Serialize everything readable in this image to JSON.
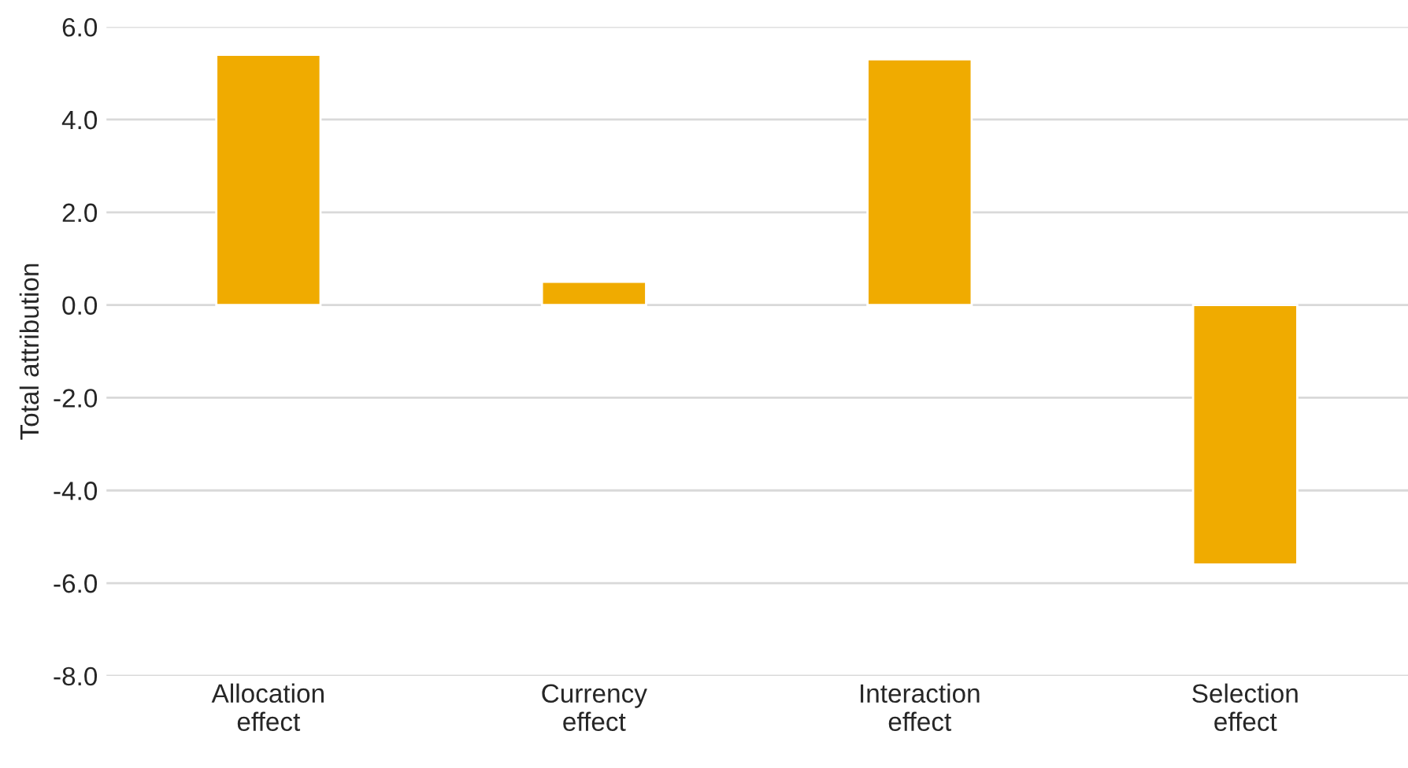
{
  "chart_data": {
    "type": "bar",
    "ylabel": "Total attribution",
    "categories": [
      "Allocation\neffect",
      "Currency\neffect",
      "Interaction\neffect",
      "Selection\neffect"
    ],
    "values": [
      5.4,
      0.5,
      5.3,
      -5.6
    ],
    "color": "#f0ab00",
    "ylim": [
      -8,
      6
    ],
    "yticks": [
      {
        "value": -8,
        "label": "-8.0"
      },
      {
        "value": -6,
        "label": "-6.0"
      },
      {
        "value": -4,
        "label": "-4.0"
      },
      {
        "value": -2,
        "label": "-2.0"
      },
      {
        "value": 0,
        "label": "0.0"
      },
      {
        "value": 2,
        "label": "2.0"
      },
      {
        "value": 4,
        "label": "4.0"
      },
      {
        "value": 6,
        "label": "6.0"
      }
    ],
    "grid": "y",
    "legend": false
  }
}
